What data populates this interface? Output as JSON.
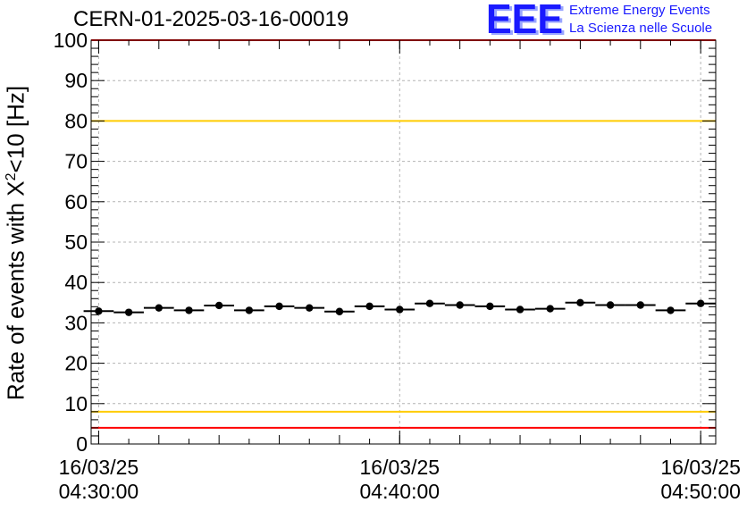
{
  "title": "CERN-01-2025-03-16-00019",
  "logo": {
    "mark": "EEE",
    "line1": "Extreme Energy Events",
    "line2": "La Scienza nelle Scuole",
    "color": "#1a1aff"
  },
  "ylabel": {
    "prefix": "Rate of events with X",
    "superscript": "2",
    "suffix": "<10 [Hz]"
  },
  "chart_data": {
    "type": "scatter",
    "title": "CERN-01-2025-03-16-00019",
    "xlabel": "",
    "ylabel": "Rate of events with X²<10 [Hz]",
    "xlim": [
      "16/03/25 04:29:45",
      "16/03/25 04:50:30"
    ],
    "ylim": [
      0,
      100
    ],
    "grid": true,
    "x_tick_labels": [
      {
        "date": "16/03/25",
        "time": "04:30:00"
      },
      {
        "date": "16/03/25",
        "time": "04:40:00"
      },
      {
        "date": "16/03/25",
        "time": "04:50:00"
      }
    ],
    "y_ticks": [
      0,
      10,
      20,
      30,
      40,
      50,
      60,
      70,
      80,
      90,
      100
    ],
    "series": [
      {
        "x": [
          "04:30:00",
          "04:31:00",
          "04:32:00",
          "04:33:00",
          "04:34:00",
          "04:35:00",
          "04:36:00",
          "04:37:00",
          "04:38:00",
          "04:39:00",
          "04:40:00",
          "04:41:00",
          "04:42:00",
          "04:43:00",
          "04:44:00",
          "04:45:00",
          "04:46:00",
          "04:47:00",
          "04:48:00",
          "04:49:00",
          "04:50:00"
        ],
        "values": [
          32.9,
          32.6,
          33.7,
          33.1,
          34.3,
          33.1,
          34.1,
          33.7,
          32.8,
          34.1,
          33.3,
          34.8,
          34.4,
          34.1,
          33.3,
          33.5,
          35.0,
          34.4,
          34.4,
          33.1,
          34.8
        ],
        "bin_width_minutes": 1,
        "color": "#000000"
      }
    ],
    "reference_lines": [
      {
        "value": 100,
        "color": "#ff0000"
      },
      {
        "value": 80,
        "color": "#ffcc00"
      },
      {
        "value": 8,
        "color": "#ffcc00"
      },
      {
        "value": 4,
        "color": "#ff0000"
      }
    ]
  }
}
